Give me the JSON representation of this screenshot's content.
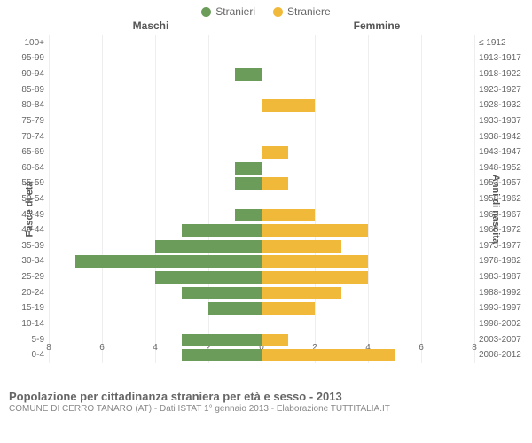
{
  "legend": {
    "male": "Stranieri",
    "female": "Straniere"
  },
  "headers": {
    "left": "Maschi",
    "right": "Femmine"
  },
  "axis_titles": {
    "left": "Fasce di età",
    "right": "Anni di nascita"
  },
  "footer": {
    "title": "Popolazione per cittadinanza straniera per età e sesso - 2013",
    "subtitle": "COMUNE DI CERRO TANARO (AT) - Dati ISTAT 1° gennaio 2013 - Elaborazione TUTTITALIA.IT"
  },
  "colors": {
    "male": "#6b9c59",
    "female": "#f1b93a",
    "grid": "#eeeeee",
    "center_dash": "#968f44",
    "text": "#666666",
    "bg": "#ffffff"
  },
  "chart": {
    "type": "population-pyramid",
    "x_max": 8,
    "x_ticks": [
      8,
      6,
      4,
      2,
      0,
      2,
      4,
      6,
      8
    ],
    "rows": [
      {
        "age": "100+",
        "birth": "≤ 1912",
        "m": 0,
        "f": 0
      },
      {
        "age": "95-99",
        "birth": "1913-1917",
        "m": 0,
        "f": 0
      },
      {
        "age": "90-94",
        "birth": "1918-1922",
        "m": 1,
        "f": 0
      },
      {
        "age": "85-89",
        "birth": "1923-1927",
        "m": 0,
        "f": 0
      },
      {
        "age": "80-84",
        "birth": "1928-1932",
        "m": 0,
        "f": 2
      },
      {
        "age": "75-79",
        "birth": "1933-1937",
        "m": 0,
        "f": 0
      },
      {
        "age": "70-74",
        "birth": "1938-1942",
        "m": 0,
        "f": 0
      },
      {
        "age": "65-69",
        "birth": "1943-1947",
        "m": 0,
        "f": 1
      },
      {
        "age": "60-64",
        "birth": "1948-1952",
        "m": 1,
        "f": 0
      },
      {
        "age": "55-59",
        "birth": "1953-1957",
        "m": 1,
        "f": 1
      },
      {
        "age": "50-54",
        "birth": "1958-1962",
        "m": 0,
        "f": 0
      },
      {
        "age": "45-49",
        "birth": "1963-1967",
        "m": 1,
        "f": 2
      },
      {
        "age": "40-44",
        "birth": "1968-1972",
        "m": 3,
        "f": 4
      },
      {
        "age": "35-39",
        "birth": "1973-1977",
        "m": 4,
        "f": 3
      },
      {
        "age": "30-34",
        "birth": "1978-1982",
        "m": 7,
        "f": 4
      },
      {
        "age": "25-29",
        "birth": "1983-1987",
        "m": 4,
        "f": 4
      },
      {
        "age": "20-24",
        "birth": "1988-1992",
        "m": 3,
        "f": 3
      },
      {
        "age": "15-19",
        "birth": "1993-1997",
        "m": 2,
        "f": 2
      },
      {
        "age": "10-14",
        "birth": "1998-2002",
        "m": 0,
        "f": 0
      },
      {
        "age": "5-9",
        "birth": "2003-2007",
        "m": 3,
        "f": 1
      },
      {
        "age": "0-4",
        "birth": "2008-2012",
        "m": 3,
        "f": 5
      }
    ]
  }
}
